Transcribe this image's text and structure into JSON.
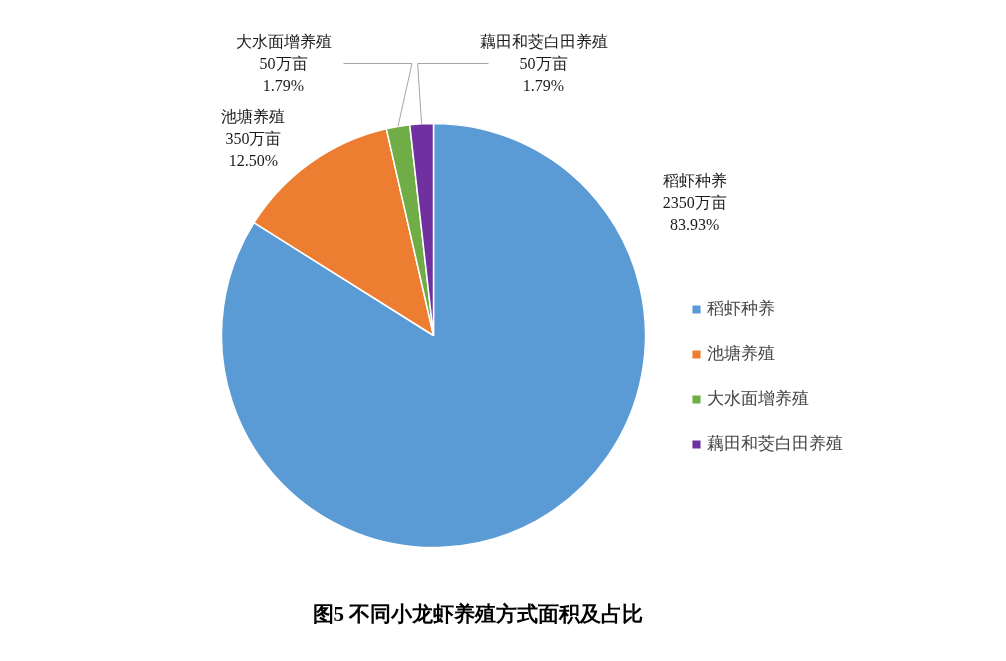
{
  "chart_data": {
    "type": "pie",
    "title": "图5  不同小龙虾养殖方式面积及占比",
    "categories": [
      "稻虾种养",
      "池塘养殖",
      "大水面增养殖",
      "藕田和茭白田养殖"
    ],
    "values": [
      2350,
      350,
      50,
      50
    ],
    "colors": [
      "#5b9bd5",
      "#ed7d31",
      "#70ad47",
      "#7030a0"
    ],
    "value_labels": [
      "2350万亩\n83.93%",
      "350万亩\n12.50%",
      "50万亩\n1.79%",
      "50万亩\n1.79%"
    ],
    "legend": "right"
  }
}
